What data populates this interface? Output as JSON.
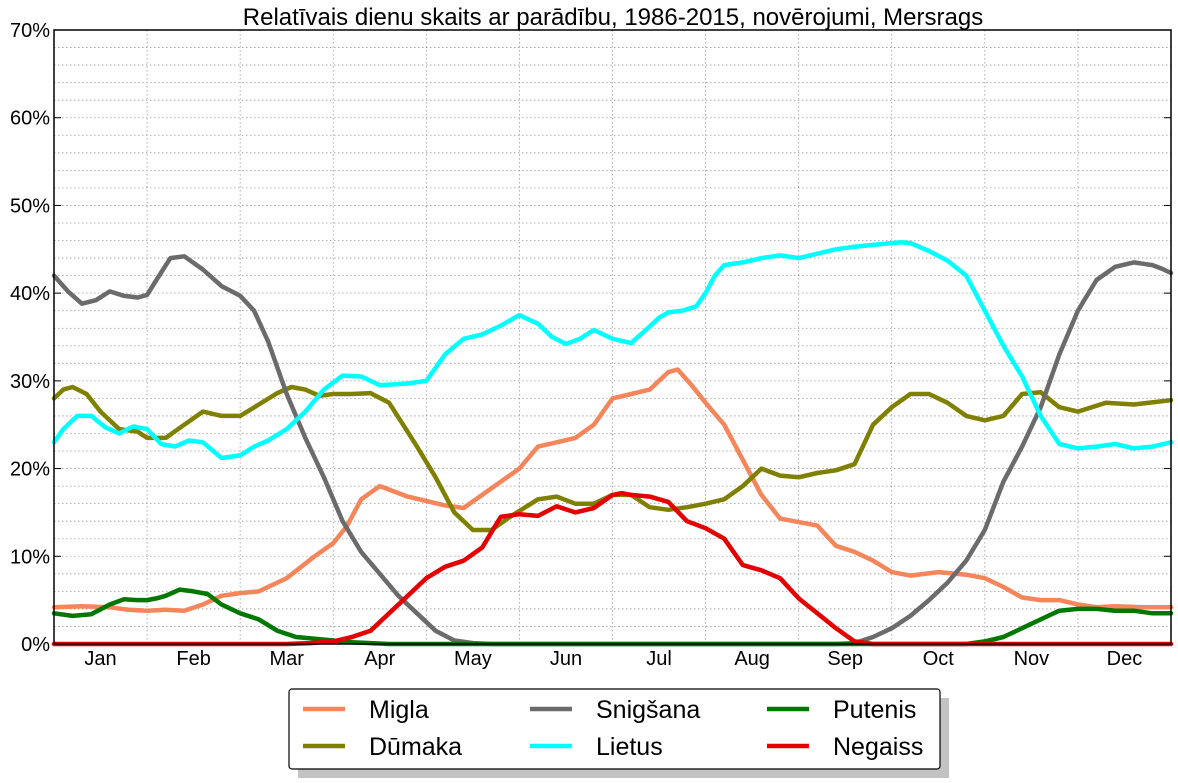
{
  "chart_data": {
    "type": "line",
    "title": "Relatīvais dienu skaits ar parādību, 1986-2015, novērojumi, Mersrags",
    "xlabel": "",
    "ylabel": "",
    "ylim": [
      0,
      70
    ],
    "xlim": [
      0,
      12
    ],
    "grid": true,
    "legend_position": "bottom-center",
    "y_ticks": [
      "0%",
      "10%",
      "20%",
      "30%",
      "40%",
      "50%",
      "60%",
      "70%"
    ],
    "y_tick_values": [
      0,
      10,
      20,
      30,
      40,
      50,
      60,
      70
    ],
    "categories": [
      "Jan",
      "Feb",
      "Mar",
      "Apr",
      "May",
      "Jun",
      "Jul",
      "Aug",
      "Sep",
      "Oct",
      "Nov",
      "Dec"
    ],
    "series": [
      {
        "name": "Migla",
        "color": "#f5855a",
        "x": [
          0,
          0.3,
          0.6,
          0.8,
          1.0,
          1.2,
          1.4,
          1.6,
          1.8,
          2.0,
          2.2,
          2.5,
          2.8,
          3.0,
          3.15,
          3.3,
          3.5,
          3.8,
          4.0,
          4.2,
          4.4,
          4.6,
          4.8,
          5.0,
          5.2,
          5.4,
          5.6,
          5.8,
          6.0,
          6.2,
          6.4,
          6.6,
          6.7,
          6.85,
          7.0,
          7.2,
          7.4,
          7.6,
          7.8,
          8.0,
          8.2,
          8.4,
          8.6,
          8.8,
          9.0,
          9.2,
          9.5,
          9.8,
          10.0,
          10.2,
          10.4,
          10.6,
          10.8,
          11.0,
          11.2,
          11.4,
          11.7,
          12.0
        ],
        "values": [
          4.2,
          4.3,
          4.2,
          3.9,
          3.8,
          3.9,
          3.8,
          4.5,
          5.5,
          5.8,
          6.0,
          7.5,
          10.0,
          11.5,
          13.5,
          16.5,
          18.0,
          16.8,
          16.3,
          15.8,
          15.5,
          17.0,
          18.5,
          20.0,
          22.5,
          23.0,
          23.5,
          25.0,
          28.0,
          28.5,
          29.0,
          31.0,
          31.3,
          29.5,
          27.5,
          25.0,
          21.0,
          17.0,
          14.3,
          13.9,
          13.5,
          11.2,
          10.5,
          9.5,
          8.2,
          7.8,
          8.2,
          7.9,
          7.5,
          6.5,
          5.3,
          5.0,
          5.0,
          4.5,
          4.2,
          4.3,
          4.2,
          4.2
        ]
      },
      {
        "name": "Dūmaka",
        "color": "#808000",
        "x": [
          0,
          0.1,
          0.2,
          0.35,
          0.5,
          0.7,
          0.9,
          1.0,
          1.2,
          1.4,
          1.6,
          1.8,
          2.0,
          2.2,
          2.4,
          2.55,
          2.7,
          2.85,
          3.0,
          3.2,
          3.4,
          3.6,
          3.75,
          3.9,
          4.1,
          4.3,
          4.5,
          4.7,
          4.9,
          5.2,
          5.4,
          5.6,
          5.8,
          6.0,
          6.2,
          6.4,
          6.6,
          6.8,
          7.0,
          7.2,
          7.4,
          7.6,
          7.8,
          8.0,
          8.2,
          8.4,
          8.6,
          8.8,
          9.0,
          9.2,
          9.4,
          9.6,
          9.8,
          10.0,
          10.2,
          10.4,
          10.6,
          10.8,
          11.0,
          11.3,
          11.6,
          12.0
        ],
        "values": [
          28.0,
          29.0,
          29.3,
          28.5,
          26.5,
          24.5,
          24.2,
          23.5,
          23.5,
          25.0,
          26.5,
          26.0,
          26.0,
          27.3,
          28.6,
          29.3,
          29.0,
          28.3,
          28.5,
          28.5,
          28.6,
          27.5,
          25.0,
          22.5,
          19.0,
          15.0,
          13.0,
          13.0,
          14.5,
          16.5,
          16.8,
          16.0,
          16.0,
          17.0,
          17.0,
          15.6,
          15.3,
          15.6,
          16.0,
          16.5,
          18.0,
          20.0,
          19.2,
          19.0,
          19.5,
          19.8,
          20.5,
          25.0,
          27.0,
          28.5,
          28.5,
          27.5,
          26.0,
          25.5,
          26.0,
          28.5,
          28.7,
          27.0,
          26.5,
          27.5,
          27.3,
          27.8
        ]
      },
      {
        "name": "Snigšana",
        "color": "#6b6b6b",
        "x": [
          0,
          0.15,
          0.3,
          0.45,
          0.6,
          0.75,
          0.9,
          1.0,
          1.1,
          1.25,
          1.4,
          1.6,
          1.8,
          2.0,
          2.15,
          2.3,
          2.5,
          2.7,
          2.9,
          3.1,
          3.3,
          3.5,
          3.7,
          3.9,
          4.1,
          4.3,
          4.5,
          4.7,
          4.9,
          5.2,
          5.5,
          6.0,
          6.5,
          7.0,
          7.5,
          8.0,
          8.4,
          8.6,
          8.8,
          9.0,
          9.2,
          9.4,
          9.6,
          9.8,
          10.0,
          10.2,
          10.4,
          10.6,
          10.8,
          11.0,
          11.2,
          11.4,
          11.6,
          11.8,
          11.9,
          12.0
        ],
        "values": [
          42.0,
          40.2,
          38.8,
          39.2,
          40.2,
          39.7,
          39.5,
          39.8,
          41.5,
          44.0,
          44.2,
          42.7,
          40.8,
          39.7,
          38.0,
          34.5,
          28.5,
          23.5,
          19.0,
          14.0,
          10.5,
          8.0,
          5.5,
          3.5,
          1.5,
          0.4,
          0.1,
          0,
          0,
          0,
          0,
          0,
          0,
          0,
          0,
          0,
          0,
          0.1,
          0.8,
          1.8,
          3.2,
          5.0,
          7.0,
          9.5,
          13.0,
          18.5,
          22.5,
          27.0,
          33.0,
          38.0,
          41.5,
          43.0,
          43.5,
          43.2,
          42.8,
          42.3
        ]
      },
      {
        "name": "Lietus",
        "color": "#00ffff",
        "x": [
          0,
          0.1,
          0.25,
          0.4,
          0.55,
          0.7,
          0.85,
          1.0,
          1.15,
          1.3,
          1.45,
          1.6,
          1.8,
          2.0,
          2.15,
          2.3,
          2.5,
          2.7,
          2.9,
          3.1,
          3.3,
          3.5,
          3.65,
          3.8,
          4.0,
          4.2,
          4.4,
          4.6,
          4.8,
          5.0,
          5.1,
          5.2,
          5.35,
          5.5,
          5.65,
          5.8,
          6.0,
          6.2,
          6.4,
          6.5,
          6.6,
          6.75,
          6.9,
          7.0,
          7.1,
          7.2,
          7.4,
          7.6,
          7.8,
          8.0,
          8.2,
          8.4,
          8.6,
          8.8,
          9.0,
          9.1,
          9.2,
          9.4,
          9.6,
          9.8,
          10.0,
          10.2,
          10.4,
          10.6,
          10.8,
          11.0,
          11.2,
          11.4,
          11.6,
          11.8,
          12.0
        ],
        "values": [
          23.0,
          24.5,
          26.0,
          26.0,
          24.7,
          24.0,
          24.8,
          24.5,
          22.8,
          22.5,
          23.2,
          23.0,
          21.2,
          21.5,
          22.5,
          23.2,
          24.5,
          26.5,
          29.0,
          30.6,
          30.5,
          29.5,
          29.6,
          29.7,
          30.0,
          33.0,
          34.8,
          35.3,
          36.3,
          37.5,
          37.0,
          36.5,
          35.0,
          34.2,
          34.8,
          35.8,
          34.8,
          34.3,
          36.2,
          37.2,
          37.8,
          38.0,
          38.5,
          40.0,
          42.0,
          43.2,
          43.5,
          44.0,
          44.3,
          44.0,
          44.5,
          45.0,
          45.3,
          45.5,
          45.7,
          45.8,
          45.7,
          44.8,
          43.7,
          42.0,
          38.0,
          34.0,
          30.5,
          26.0,
          22.8,
          22.3,
          22.5,
          22.8,
          22.3,
          22.5,
          23.0
        ]
      },
      {
        "name": "Putenis",
        "color": "#007800",
        "x": [
          0,
          0.2,
          0.4,
          0.6,
          0.75,
          0.9,
          1.0,
          1.1,
          1.2,
          1.35,
          1.5,
          1.65,
          1.8,
          2.0,
          2.2,
          2.4,
          2.6,
          2.8,
          3.0,
          3.2,
          3.4,
          3.6,
          3.8,
          4.0,
          5.0,
          6.0,
          7.0,
          8.0,
          9.0,
          9.5,
          9.8,
          10.0,
          10.2,
          10.4,
          10.6,
          10.8,
          11.0,
          11.2,
          11.4,
          11.6,
          11.8,
          12.0
        ],
        "values": [
          3.5,
          3.2,
          3.4,
          4.5,
          5.1,
          5.0,
          5.0,
          5.2,
          5.5,
          6.2,
          6.0,
          5.7,
          4.5,
          3.5,
          2.8,
          1.5,
          0.8,
          0.6,
          0.4,
          0.2,
          0.1,
          0,
          0,
          0,
          0,
          0,
          0,
          0,
          0,
          0,
          0,
          0.3,
          0.8,
          1.8,
          2.8,
          3.8,
          4.0,
          4.0,
          3.8,
          3.8,
          3.5,
          3.5
        ]
      },
      {
        "name": "Negaiss",
        "color": "#e50000",
        "x": [
          0,
          2.5,
          2.75,
          3.0,
          3.2,
          3.4,
          3.6,
          3.8,
          4.0,
          4.2,
          4.4,
          4.6,
          4.8,
          5.0,
          5.2,
          5.4,
          5.6,
          5.8,
          6.0,
          6.1,
          6.2,
          6.4,
          6.6,
          6.8,
          7.0,
          7.2,
          7.4,
          7.6,
          7.8,
          8.0,
          8.2,
          8.4,
          8.6,
          8.8,
          9.0,
          9.2,
          9.5,
          10.0,
          11.0,
          12.0
        ],
        "values": [
          0,
          0,
          0.1,
          0.3,
          0.8,
          1.5,
          3.5,
          5.5,
          7.5,
          8.8,
          9.5,
          11.0,
          14.5,
          14.8,
          14.6,
          15.7,
          15.0,
          15.5,
          17.0,
          17.2,
          17.0,
          16.8,
          16.2,
          14.0,
          13.2,
          12.0,
          9.0,
          8.4,
          7.5,
          5.2,
          3.5,
          1.8,
          0.3,
          0,
          0,
          0,
          0,
          0,
          0,
          0
        ]
      }
    ]
  }
}
